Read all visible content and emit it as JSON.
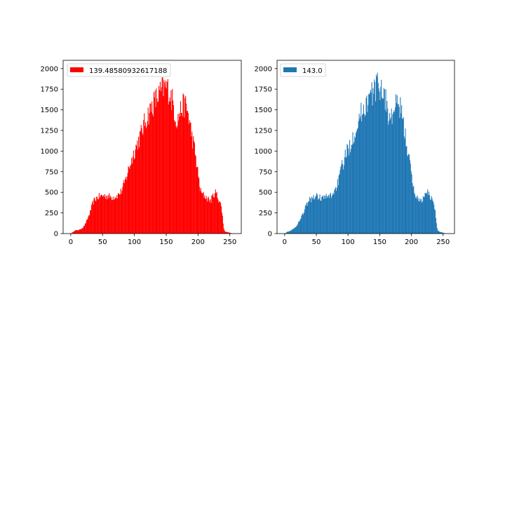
{
  "colors": {
    "left_hist": "#ff0000",
    "right_hist": "#1f77b4"
  },
  "chart_data": [
    {
      "type": "bar",
      "subtype": "histogram",
      "color": "#ff0000",
      "legend_position": "upper-left",
      "series": [
        {
          "name": "139.48580932617188"
        }
      ],
      "xlim": [
        -12,
        268
      ],
      "ylim": [
        0,
        2100
      ],
      "xticks": [
        0,
        50,
        100,
        150,
        200,
        250
      ],
      "yticks": [
        0,
        250,
        500,
        750,
        1000,
        1250,
        1500,
        1750,
        2000
      ],
      "bin_width": 1,
      "control_points": [
        [
          0,
          0
        ],
        [
          2,
          10
        ],
        [
          5,
          30
        ],
        [
          8,
          40
        ],
        [
          10,
          40
        ],
        [
          15,
          50
        ],
        [
          20,
          80
        ],
        [
          25,
          150
        ],
        [
          30,
          250
        ],
        [
          35,
          380
        ],
        [
          40,
          430
        ],
        [
          45,
          450
        ],
        [
          50,
          460
        ],
        [
          55,
          455
        ],
        [
          60,
          450
        ],
        [
          65,
          440
        ],
        [
          70,
          450
        ],
        [
          75,
          470
        ],
        [
          80,
          520
        ],
        [
          85,
          620
        ],
        [
          90,
          760
        ],
        [
          95,
          880
        ],
        [
          100,
          1000
        ],
        [
          105,
          1100
        ],
        [
          110,
          1200
        ],
        [
          115,
          1320
        ],
        [
          120,
          1420
        ],
        [
          125,
          1500
        ],
        [
          130,
          1580
        ],
        [
          135,
          1640
        ],
        [
          140,
          1700
        ],
        [
          145,
          1760
        ],
        [
          150,
          1780
        ],
        [
          155,
          1720
        ],
        [
          160,
          1600
        ],
        [
          163,
          1480
        ],
        [
          165,
          1400
        ],
        [
          168,
          1370
        ],
        [
          170,
          1440
        ],
        [
          175,
          1540
        ],
        [
          180,
          1560
        ],
        [
          183,
          1500
        ],
        [
          186,
          1380
        ],
        [
          190,
          1200
        ],
        [
          195,
          1000
        ],
        [
          200,
          720
        ],
        [
          203,
          560
        ],
        [
          205,
          490
        ],
        [
          210,
          460
        ],
        [
          215,
          420
        ],
        [
          220,
          400
        ],
        [
          225,
          480
        ],
        [
          228,
          500
        ],
        [
          232,
          420
        ],
        [
          235,
          380
        ],
        [
          238,
          250
        ],
        [
          240,
          80
        ],
        [
          242,
          25
        ],
        [
          245,
          20
        ],
        [
          248,
          15
        ],
        [
          252,
          5
        ],
        [
          255,
          0
        ]
      ]
    },
    {
      "type": "bar",
      "subtype": "histogram",
      "color": "#1f77b4",
      "legend_position": "upper-left",
      "series": [
        {
          "name": "143.0"
        }
      ],
      "xlim": [
        -12,
        268
      ],
      "ylim": [
        0,
        2100
      ],
      "xticks": [
        0,
        50,
        100,
        150,
        200,
        250
      ],
      "yticks": [
        0,
        250,
        500,
        750,
        1000,
        1250,
        1500,
        1750,
        2000
      ],
      "bin_width": 1,
      "control_points": [
        [
          0,
          0
        ],
        [
          2,
          10
        ],
        [
          5,
          25
        ],
        [
          8,
          30
        ],
        [
          10,
          40
        ],
        [
          15,
          60
        ],
        [
          20,
          110
        ],
        [
          25,
          180
        ],
        [
          30,
          260
        ],
        [
          35,
          360
        ],
        [
          40,
          410
        ],
        [
          45,
          440
        ],
        [
          50,
          450
        ],
        [
          55,
          440
        ],
        [
          60,
          430
        ],
        [
          65,
          440
        ],
        [
          70,
          450
        ],
        [
          75,
          470
        ],
        [
          80,
          540
        ],
        [
          85,
          640
        ],
        [
          90,
          800
        ],
        [
          95,
          920
        ],
        [
          100,
          1020
        ],
        [
          105,
          1120
        ],
        [
          110,
          1230
        ],
        [
          115,
          1340
        ],
        [
          120,
          1440
        ],
        [
          125,
          1520
        ],
        [
          130,
          1600
        ],
        [
          135,
          1660
        ],
        [
          140,
          1720
        ],
        [
          145,
          1780
        ],
        [
          150,
          1800
        ],
        [
          155,
          1730
        ],
        [
          160,
          1600
        ],
        [
          163,
          1470
        ],
        [
          165,
          1390
        ],
        [
          168,
          1380
        ],
        [
          170,
          1450
        ],
        [
          175,
          1540
        ],
        [
          180,
          1560
        ],
        [
          183,
          1500
        ],
        [
          186,
          1380
        ],
        [
          190,
          1200
        ],
        [
          195,
          980
        ],
        [
          200,
          700
        ],
        [
          203,
          560
        ],
        [
          205,
          490
        ],
        [
          210,
          420
        ],
        [
          215,
          400
        ],
        [
          220,
          440
        ],
        [
          225,
          500
        ],
        [
          228,
          470
        ],
        [
          232,
          420
        ],
        [
          235,
          380
        ],
        [
          238,
          250
        ],
        [
          240,
          90
        ],
        [
          242,
          30
        ],
        [
          245,
          20
        ],
        [
          248,
          15
        ],
        [
          252,
          5
        ],
        [
          255,
          0
        ]
      ]
    }
  ]
}
